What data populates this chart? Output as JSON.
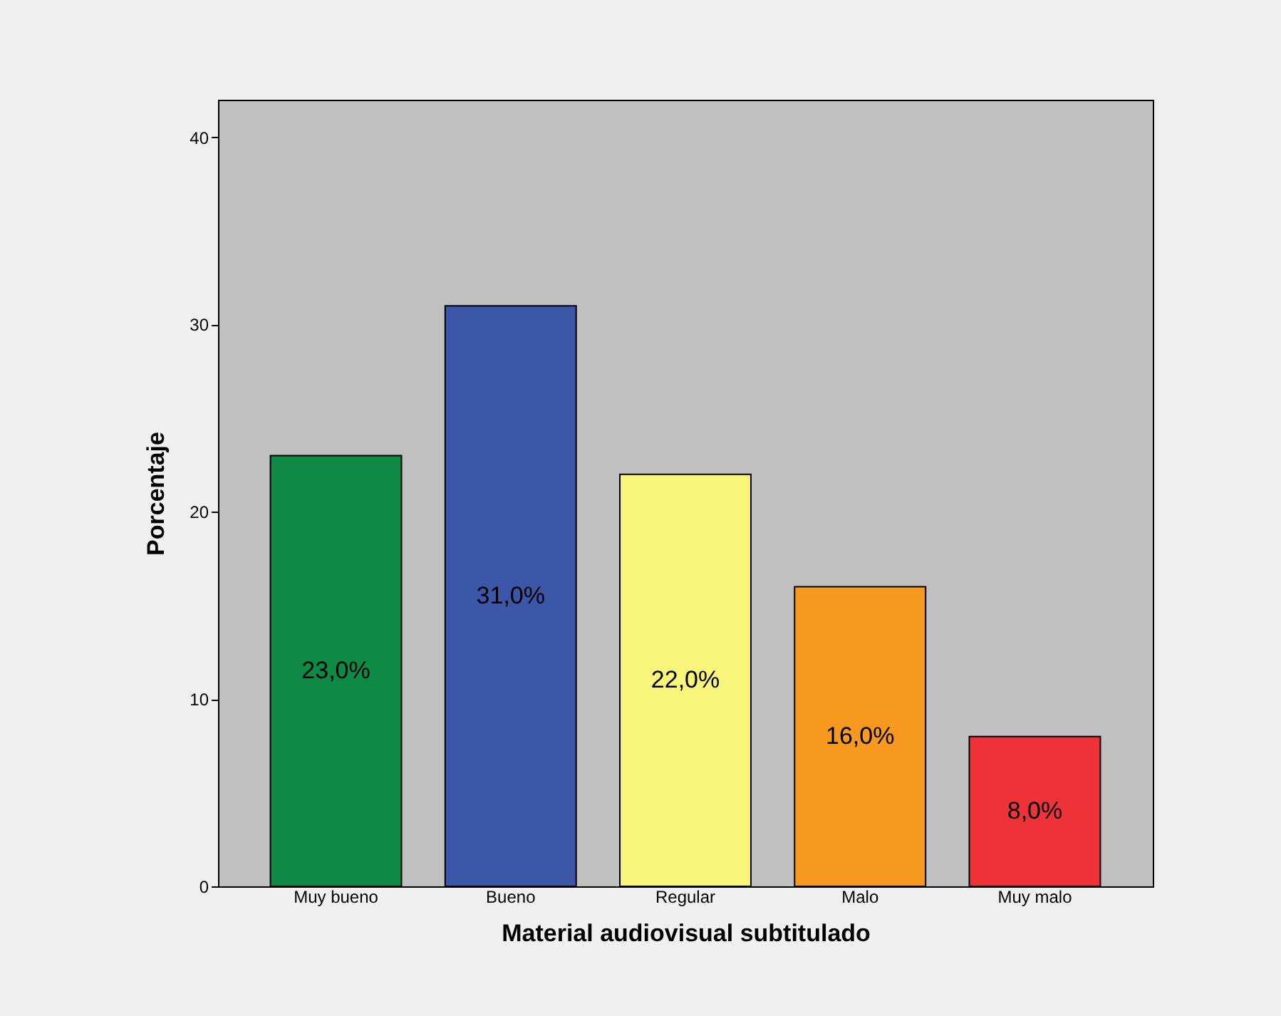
{
  "chart_data": {
    "type": "bar",
    "xlabel": "Material audiovisual subtitulado",
    "ylabel": "Porcentaje",
    "categories": [
      "Muy bueno",
      "Bueno",
      "Regular",
      "Malo",
      "Muy malo"
    ],
    "values": [
      23,
      31,
      22,
      16,
      8
    ],
    "colors": [
      "#0f8a45",
      "#3c56a8",
      "#f8f57a",
      "#f7981f",
      "#ee3338"
    ],
    "value_labels": [
      "23,0%",
      "31,0%",
      "22,0%",
      "16,0%",
      "8,0%"
    ],
    "ylim": [
      0,
      42
    ],
    "yticks": [
      0,
      10,
      20,
      30,
      40
    ],
    "legend": false
  }
}
